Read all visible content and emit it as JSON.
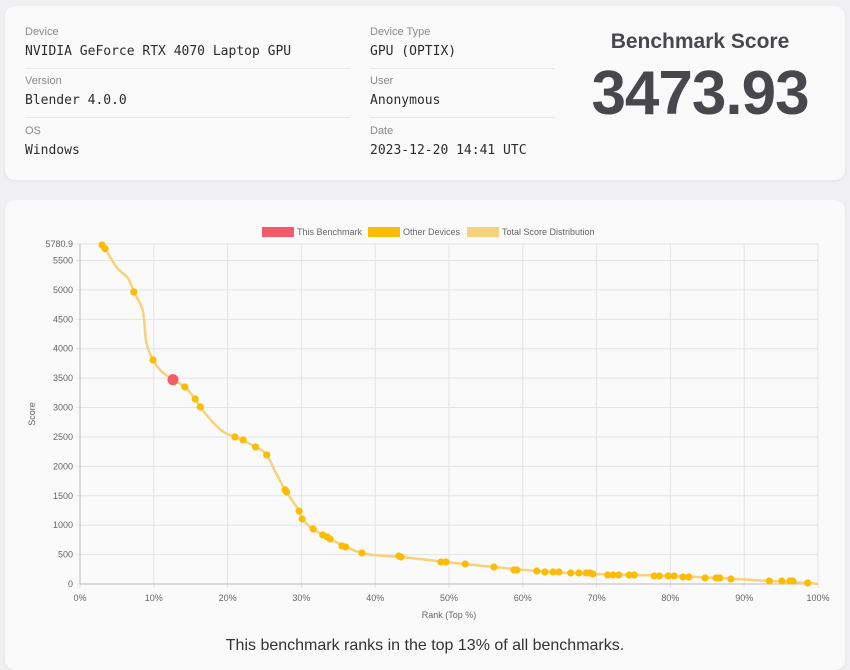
{
  "info": {
    "device_label": "Device",
    "device": "NVIDIA GeForce RTX 4070 Laptop GPU",
    "version_label": "Version",
    "version": "Blender 4.0.0",
    "os_label": "OS",
    "os": "Windows",
    "device_type_label": "Device Type",
    "device_type": "GPU (OPTIX)",
    "user_label": "User",
    "user": "Anonymous",
    "date_label": "Date",
    "date": "2023-12-20 14:41 UTC"
  },
  "score": {
    "title": "Benchmark Score",
    "value": "3473.93"
  },
  "footer": "This benchmark ranks in the top 13% of all benchmarks.",
  "chart_data": {
    "type": "scatter",
    "xlabel": "Rank (Top %)",
    "ylabel": "Score",
    "xlim": [
      0,
      100
    ],
    "ylim": [
      0,
      5780.9
    ],
    "x_ticks": [
      "0%",
      "10%",
      "20%",
      "30%",
      "40%",
      "50%",
      "60%",
      "70%",
      "80%",
      "90%",
      "100%"
    ],
    "y_ticks": [
      "0",
      "500",
      "1000",
      "1500",
      "2000",
      "2500",
      "3000",
      "3500",
      "4000",
      "4500",
      "5000",
      "5500",
      "5780.9"
    ],
    "grid": true,
    "legend_position": "top",
    "colors": {
      "this": "#f45b69",
      "other": "#fbbc05",
      "distribution": "#f7d27a"
    },
    "series": [
      {
        "name": "This Benchmark",
        "points": [
          [
            12.6,
            3473.93
          ]
        ]
      },
      {
        "name": "Other Devices",
        "points": [
          [
            3.0,
            5765
          ],
          [
            3.4,
            5700
          ],
          [
            7.3,
            4966
          ],
          [
            9.9,
            3810
          ],
          [
            14.2,
            3350
          ],
          [
            15.6,
            3146
          ],
          [
            16.3,
            3010
          ],
          [
            21.0,
            2500
          ],
          [
            22.1,
            2450
          ],
          [
            23.8,
            2330
          ],
          [
            25.3,
            2194
          ],
          [
            27.8,
            1600
          ],
          [
            28.0,
            1565
          ],
          [
            29.7,
            1240
          ],
          [
            30.1,
            1105
          ],
          [
            31.6,
            935
          ],
          [
            32.9,
            833
          ],
          [
            33.5,
            800
          ],
          [
            33.9,
            765
          ],
          [
            35.5,
            646
          ],
          [
            36.0,
            630
          ],
          [
            38.2,
            527
          ],
          [
            43.2,
            476
          ],
          [
            43.5,
            459
          ],
          [
            48.9,
            374
          ],
          [
            49.6,
            374
          ],
          [
            52.2,
            340
          ],
          [
            56.1,
            289
          ],
          [
            58.8,
            238
          ],
          [
            59.2,
            238
          ],
          [
            61.9,
            221
          ],
          [
            63.0,
            204
          ],
          [
            64.1,
            204
          ],
          [
            64.9,
            204
          ],
          [
            66.5,
            187
          ],
          [
            67.6,
            187
          ],
          [
            68.6,
            187
          ],
          [
            69.1,
            187
          ],
          [
            69.5,
            170
          ],
          [
            71.5,
            153
          ],
          [
            72.2,
            153
          ],
          [
            73.0,
            153
          ],
          [
            74.4,
            153
          ],
          [
            75.1,
            153
          ],
          [
            77.8,
            136
          ],
          [
            78.5,
            136
          ],
          [
            79.7,
            136
          ],
          [
            80.5,
            136
          ],
          [
            81.7,
            119
          ],
          [
            82.5,
            119
          ],
          [
            84.7,
            102
          ],
          [
            86.2,
            102
          ],
          [
            86.7,
            102
          ],
          [
            88.2,
            85
          ],
          [
            93.4,
            51
          ],
          [
            95.1,
            51
          ],
          [
            96.2,
            51
          ],
          [
            96.6,
            51
          ],
          [
            98.6,
            17
          ]
        ]
      },
      {
        "name": "Total Score Distribution",
        "points": [
          [
            2.8,
            5780
          ],
          [
            3.5,
            5680
          ],
          [
            5.0,
            5380
          ],
          [
            6.5,
            5200
          ],
          [
            7.3,
            4966
          ],
          [
            8.5,
            4650
          ],
          [
            9.0,
            4100
          ],
          [
            9.9,
            3810
          ],
          [
            11.0,
            3620
          ],
          [
            12.6,
            3474
          ],
          [
            14.2,
            3350
          ],
          [
            15.6,
            3146
          ],
          [
            16.3,
            3010
          ],
          [
            18.0,
            2750
          ],
          [
            19.5,
            2580
          ],
          [
            21.0,
            2500
          ],
          [
            23.8,
            2330
          ],
          [
            25.3,
            2194
          ],
          [
            26.5,
            1900
          ],
          [
            27.8,
            1600
          ],
          [
            29.7,
            1240
          ],
          [
            30.1,
            1105
          ],
          [
            31.6,
            935
          ],
          [
            33.9,
            765
          ],
          [
            36.0,
            630
          ],
          [
            38.2,
            527
          ],
          [
            40.0,
            490
          ],
          [
            43.5,
            459
          ],
          [
            49.6,
            374
          ],
          [
            56.1,
            289
          ],
          [
            61.9,
            221
          ],
          [
            69.5,
            170
          ],
          [
            75.1,
            153
          ],
          [
            80.5,
            136
          ],
          [
            86.7,
            102
          ],
          [
            93.4,
            51
          ],
          [
            98.6,
            17
          ],
          [
            100,
            0
          ]
        ]
      }
    ]
  }
}
